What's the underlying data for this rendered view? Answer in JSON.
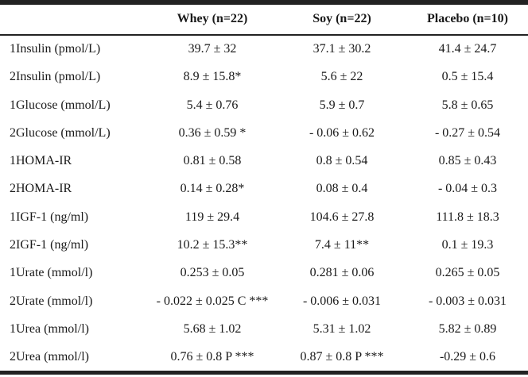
{
  "table": {
    "columns": [
      "",
      "Whey (n=22)",
      "Soy (n=22)",
      "Placebo (n=10)"
    ],
    "rows": [
      [
        "1Insulin (pmol/L)",
        "39.7 ± 32",
        "37.1 ± 30.2",
        "41.4 ± 24.7"
      ],
      [
        "2Insulin (pmol/L)",
        "8.9 ± 15.8*",
        "5.6 ± 22",
        "0.5 ± 15.4"
      ],
      [
        "1Glucose (mmol/L)",
        "5.4 ± 0.76",
        "5.9 ± 0.7",
        "5.8 ± 0.65"
      ],
      [
        "2Glucose (mmol/L)",
        "0.36 ± 0.59 *",
        "- 0.06 ± 0.62",
        "- 0.27 ± 0.54"
      ],
      [
        "1HOMA-IR",
        "0.81 ± 0.58",
        "0.8 ± 0.54",
        "0.85 ± 0.43"
      ],
      [
        "2HOMA-IR",
        "0.14 ± 0.28*",
        "0.08 ± 0.4",
        "- 0.04 ± 0.3"
      ],
      [
        "1IGF-1 (ng/ml)",
        "119 ± 29.4",
        "104.6 ± 27.8",
        "111.8 ± 18.3"
      ],
      [
        "2IGF-1 (ng/ml)",
        "10.2 ± 15.3**",
        "7.4 ± 11**",
        "0.1 ± 19.3"
      ],
      [
        "1Urate (mmol/l)",
        "0.253 ± 0.05",
        "0.281 ± 0.06",
        "0.265 ± 0.05"
      ],
      [
        "2Urate (mmol/l)",
        "- 0.022 ± 0.025 C ***",
        "- 0.006 ± 0.031",
        "- 0.003 ± 0.031"
      ],
      [
        "1Urea (mmol/l)",
        "5.68 ± 1.02",
        "5.31 ± 1.02",
        "5.82 ± 0.89"
      ],
      [
        "2Urea (mmol/l)",
        "0.76 ± 0.8 P ***",
        "0.87 ± 0.8 P ***",
        "-0.29 ± 0.6"
      ]
    ]
  }
}
